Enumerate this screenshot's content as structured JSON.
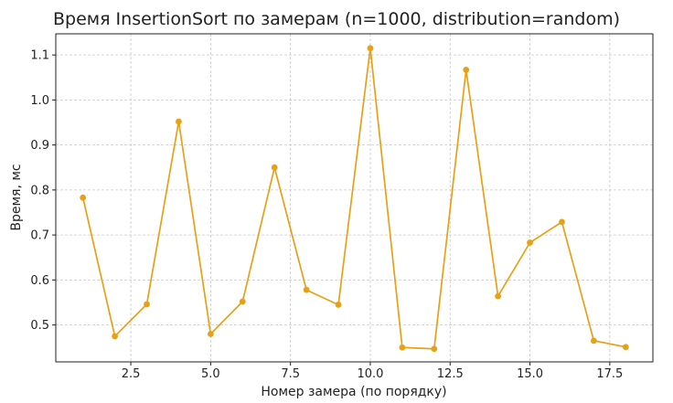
{
  "chart_data": {
    "type": "line",
    "title": "Время InsertionSort по замерам (n=1000, distribution=random)",
    "xlabel": "Номер замера (по порядку)",
    "ylabel": "Время, мс",
    "xlim": [
      0.15,
      18.85
    ],
    "ylim": [
      0.418,
      1.147
    ],
    "x_ticks": [
      2.5,
      5.0,
      7.5,
      10.0,
      12.5,
      15.0,
      17.5
    ],
    "x_tick_labels": [
      "2.5",
      "5.0",
      "7.5",
      "10.0",
      "12.5",
      "15.0",
      "17.5"
    ],
    "y_ticks": [
      0.5,
      0.6,
      0.7,
      0.8,
      0.9,
      1.0,
      1.1
    ],
    "y_tick_labels": [
      "0.5",
      "0.6",
      "0.7",
      "0.8",
      "0.9",
      "1.0",
      "1.1"
    ],
    "grid": true,
    "grid_style": "dashed",
    "series": [
      {
        "color": "#e6a117",
        "x": [
          1,
          2,
          3,
          4,
          5,
          6,
          7,
          8,
          9,
          10,
          11,
          12,
          13,
          14,
          15,
          16,
          17,
          18
        ],
        "values": [
          0.783,
          0.475,
          0.546,
          0.952,
          0.48,
          0.552,
          0.85,
          0.578,
          0.545,
          1.115,
          0.45,
          0.447,
          1.067,
          0.564,
          0.683,
          0.729,
          0.465,
          0.451
        ]
      }
    ]
  }
}
